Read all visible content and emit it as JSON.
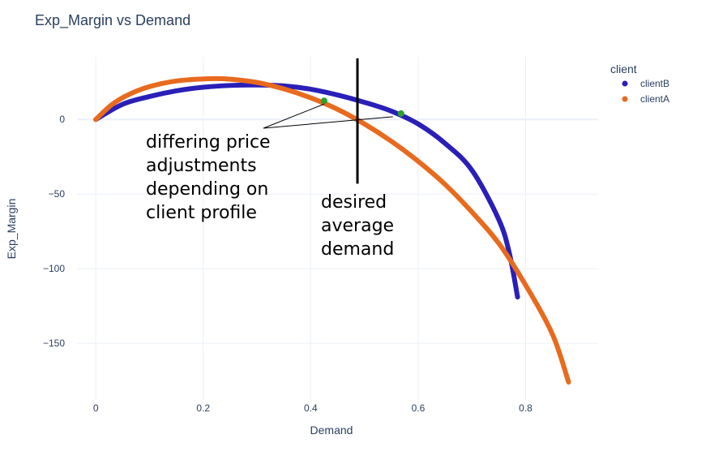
{
  "chart_data": {
    "type": "line",
    "title": "Exp_Margin vs Demand",
    "xlabel": "Demand",
    "ylabel": "Exp_Margin",
    "xlim": [
      -0.035,
      0.935
    ],
    "ylim": [
      -188,
      42
    ],
    "x_ticks": [
      0,
      0.2,
      0.4,
      0.6,
      0.8
    ],
    "x_tick_labels": [
      "0",
      "0.2",
      "0.4",
      "0.6",
      "0.8"
    ],
    "y_ticks": [
      0,
      -50,
      -100,
      -150
    ],
    "y_tick_labels": [
      "0",
      "−50",
      "−100",
      "−150"
    ],
    "grid": true,
    "legend": {
      "title": "client",
      "placement": "top-right"
    },
    "series": [
      {
        "name": "clientB",
        "color": "#2a1fb8",
        "x": [
          0,
          0.05,
          0.1,
          0.15,
          0.2,
          0.25,
          0.3,
          0.35,
          0.4,
          0.45,
          0.5,
          0.55,
          0.6,
          0.65,
          0.7,
          0.75,
          0.77,
          0.785
        ],
        "y": [
          0,
          10.2,
          15.4,
          19.2,
          21.6,
          22.8,
          23.1,
          22.5,
          20.3,
          16.4,
          11.5,
          5.6,
          -3,
          -16,
          -34,
          -67,
          -90,
          -119
        ]
      },
      {
        "name": "clientA",
        "color": "#e86a1e",
        "x": [
          0,
          0.03,
          0.06,
          0.1,
          0.15,
          0.21,
          0.25,
          0.3,
          0.35,
          0.4,
          0.45,
          0.5,
          0.55,
          0.6,
          0.65,
          0.7,
          0.75,
          0.8,
          0.85,
          0.88
        ],
        "y": [
          0,
          10,
          16.5,
          22,
          25.8,
          27.3,
          27,
          24.8,
          20.5,
          14.5,
          6.8,
          -3,
          -14.6,
          -28,
          -43.5,
          -62,
          -83,
          -111,
          -144,
          -176
        ]
      }
    ],
    "markers": [
      {
        "x": 0.425,
        "y": 12.5,
        "color": "#2ca02c"
      },
      {
        "x": 0.568,
        "y": 4,
        "color": "#2ca02c"
      }
    ],
    "vertical_line": {
      "x": 0.487,
      "y_from": -43,
      "y_to": 41,
      "color": "#000000"
    },
    "annotations": [
      {
        "id": "a1",
        "lines": [
          "differing price",
          "adjustments",
          "depending on",
          "client profile"
        ]
      },
      {
        "id": "a2",
        "lines": [
          "desired",
          "average",
          "demand"
        ]
      }
    ]
  }
}
